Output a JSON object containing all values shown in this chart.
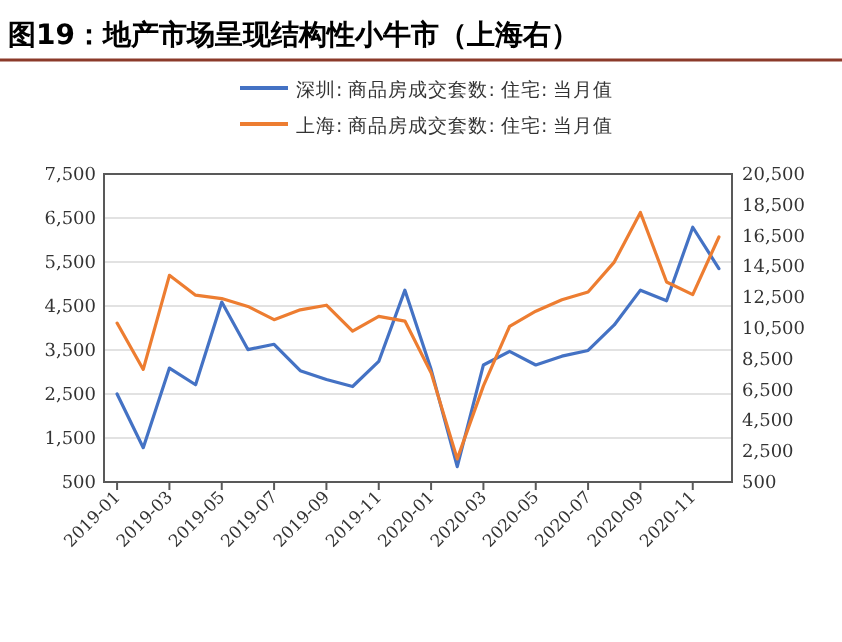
{
  "chart_data": {
    "type": "line",
    "title": "图19：地产市场呈现结构性小牛市（上海右）",
    "categories": [
      "2019-01",
      null,
      "2019-03",
      null,
      "2019-05",
      null,
      "2019-07",
      null,
      "2019-09",
      null,
      "2019-11",
      null,
      "2020-01",
      null,
      "2020-03",
      null,
      "2020-05",
      null,
      "2020-07",
      null,
      "2020-09",
      null,
      "2020-11",
      null
    ],
    "series": [
      {
        "name": "深圳: 商品房成交套数: 住宅: 当月值",
        "color": "#4472c4",
        "values": [
          2500,
          1280,
          3090,
          2710,
          4590,
          3510,
          3630,
          3030,
          2830,
          2670,
          3240,
          4860,
          3060,
          850,
          3160,
          3470,
          3160,
          3360,
          3490,
          4070,
          4860,
          4620,
          6290,
          5350
        ]
      },
      {
        "name": "上海: 商品房成交套数: 住宅: 当月值",
        "color": "#ed7d31",
        "axis": "y2",
        "values": [
          10820,
          7810,
          13920,
          12630,
          12410,
          11900,
          11040,
          11680,
          11980,
          10300,
          11250,
          10950,
          7600,
          2000,
          6740,
          10610,
          11590,
          12330,
          12840,
          14780,
          18000,
          13490,
          12670,
          16410
        ]
      }
    ],
    "ylim": [
      500,
      7500
    ],
    "yticks": [
      500,
      {
        "value": 1500,
        "label": "1,500"
      },
      {
        "value": 2500,
        "label": "2,500"
      },
      {
        "value": 3500,
        "label": "3,500"
      },
      {
        "value": 4500,
        "label": "4,500"
      },
      {
        "value": 5500,
        "label": "5,500"
      },
      {
        "value": 6500,
        "label": "6,500"
      },
      {
        "value": 7500,
        "label": "7,500"
      }
    ],
    "y2lim": [
      500,
      20500
    ],
    "y2ticks": [
      500,
      {
        "value": 2500,
        "label": "2,500"
      },
      {
        "value": 4500,
        "label": "4,500"
      },
      {
        "value": 6500,
        "label": "6,500"
      },
      {
        "value": 8500,
        "label": "8,500"
      },
      {
        "value": 10500,
        "label": "10,500"
      },
      {
        "value": 12500,
        "label": "12,500"
      },
      {
        "value": 14500,
        "label": "14,500"
      },
      {
        "value": 16500,
        "label": "16,500"
      },
      {
        "value": 18500,
        "label": "18,500"
      },
      {
        "value": 20500,
        "label": "20,500"
      }
    ],
    "grid": "y",
    "legend": "top",
    "marker": "none",
    "line_style": "solid"
  }
}
